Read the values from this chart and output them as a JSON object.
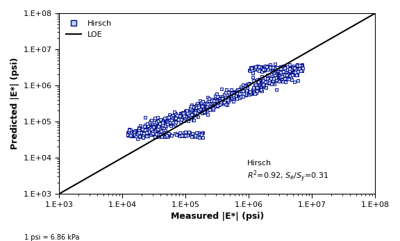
{
  "xlabel": "Measured |E*| (psi)",
  "ylabel": "Predicted |E*| (psi)",
  "footnote": "1 psi = 6.86 kPa",
  "loe_color": "#000000",
  "scatter_facecolor": "#b8d4e8",
  "scatter_edgecolor": "#00008B",
  "scatter_marker": "s",
  "scatter_size": 12,
  "floor_log": 4.63,
  "floor_measured_min_log": 4.08,
  "floor_measured_max_log": 5.3,
  "cap_log": 6.47,
  "cap_measured_min_log": 6.0,
  "cap_measured_max_log": 6.85,
  "main_meas_min_log": 4.08,
  "main_meas_max_log": 6.85,
  "n_main": 700,
  "n_floor": 120,
  "n_cap": 150,
  "seed": 15
}
